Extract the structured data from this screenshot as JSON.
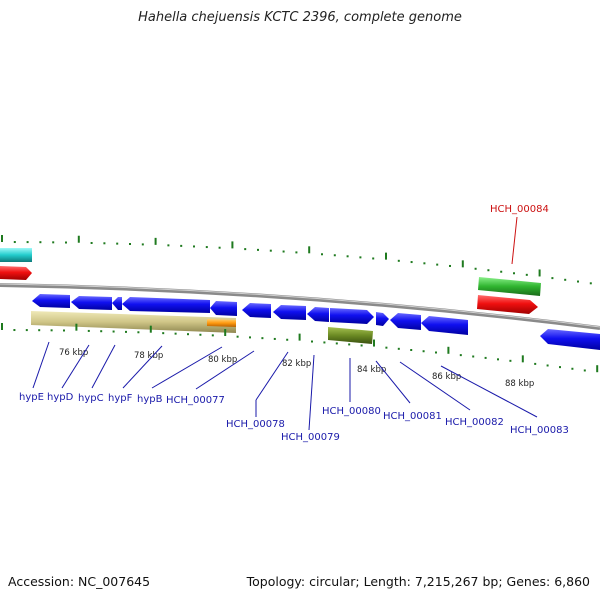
{
  "title": "Hahella chejuensis KCTC 2396, complete genome",
  "footer": {
    "accession": "Accession: NC_007645",
    "stats": "Topology: circular; Length: 7,215,267 bp; Genes: 6,860"
  },
  "scale_labels": [
    "76 kbp",
    "78 kbp",
    "80 kbp",
    "82 kbp",
    "84 kbp",
    "86 kbp",
    "88 kbp"
  ],
  "gene_labels": [
    "hypE",
    "hypD",
    "hypC",
    "hypF",
    "hypB",
    "HCH_00077",
    "HCH_00078",
    "HCH_00079",
    "HCH_00080",
    "HCH_00081",
    "HCH_00082",
    "HCH_00083"
  ],
  "highlight_label": "HCH_00084",
  "colors": {
    "gene_label": "#1a1aaa",
    "highlight_label": "#cc1111",
    "tick": "#1f7a1f",
    "cds_blue": "#1a1af0",
    "backbone": "#8a8a8a"
  }
}
